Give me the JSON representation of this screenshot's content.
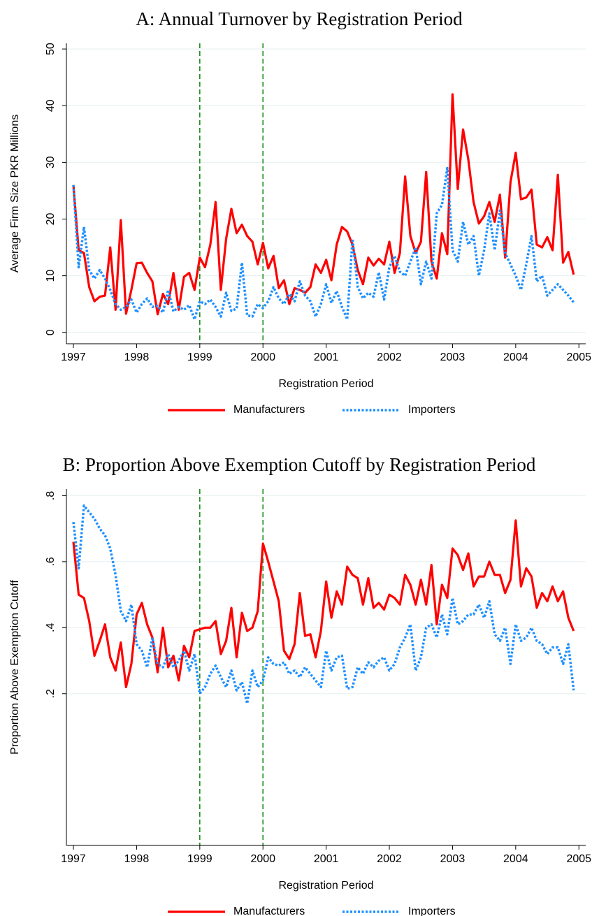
{
  "chart_data": [
    {
      "type": "line",
      "title": "A: Annual Turnover by Registration Period",
      "xlabel": "Registration Period",
      "ylabel": "Average Firm Size PKR Millions",
      "x": [
        1997,
        1997.083,
        1997.167,
        1997.25,
        1997.333,
        1997.417,
        1997.5,
        1997.583,
        1997.667,
        1997.75,
        1997.833,
        1997.917,
        1998,
        1998.083,
        1998.167,
        1998.25,
        1998.333,
        1998.417,
        1998.5,
        1998.583,
        1998.667,
        1998.75,
        1998.833,
        1998.917,
        1999,
        1999.083,
        1999.167,
        1999.25,
        1999.333,
        1999.417,
        1999.5,
        1999.583,
        1999.667,
        1999.75,
        1999.833,
        1999.917,
        2000,
        2000.083,
        2000.167,
        2000.25,
        2000.333,
        2000.417,
        2000.5,
        2000.583,
        2000.667,
        2000.75,
        2000.833,
        2000.917,
        2001,
        2001.083,
        2001.167,
        2001.25,
        2001.333,
        2001.417,
        2001.5,
        2001.583,
        2001.667,
        2001.75,
        2001.833,
        2001.917,
        2002,
        2002.083,
        2002.167,
        2002.25,
        2002.333,
        2002.417,
        2002.5,
        2002.583,
        2002.667,
        2002.75,
        2002.833,
        2002.917,
        2003,
        2003.083,
        2003.167,
        2003.25,
        2003.333,
        2003.417,
        2003.5,
        2003.583,
        2003.667,
        2003.75,
        2003.833,
        2003.917,
        2004,
        2004.083,
        2004.167,
        2004.25,
        2004.333,
        2004.417,
        2004.5,
        2004.583,
        2004.667,
        2004.75,
        2004.833,
        2004.917
      ],
      "series": [
        {
          "name": "Manufacturers",
          "color": "#ff0000",
          "style": "solid",
          "values": [
            26,
            14.5,
            14,
            8,
            5.5,
            6.3,
            6.5,
            15,
            4,
            19.8,
            3.3,
            7.5,
            12.2,
            12.3,
            10.5,
            9,
            3.2,
            6.8,
            5,
            10.5,
            4,
            9.8,
            10.5,
            7.5,
            13.2,
            11.5,
            15.5,
            23,
            7.5,
            16.5,
            21.8,
            17.5,
            19,
            17,
            16,
            12,
            15.8,
            11.3,
            13.5,
            7.8,
            9.2,
            5,
            7.8,
            7.5,
            7,
            8,
            12,
            10.5,
            12.8,
            9.2,
            15.5,
            18.6,
            17.8,
            15.5,
            11,
            8.5,
            13.2,
            11.8,
            13,
            12,
            16,
            10.5,
            14,
            27.5,
            17,
            14,
            16,
            28.3,
            12.5,
            9.5,
            17.5,
            13.8,
            42,
            25.3,
            35.8,
            30.5,
            23,
            19.2,
            20.5,
            23,
            19.5,
            24.3,
            13.2,
            26.5,
            31.7,
            23.5,
            23.8,
            25.2,
            15.5,
            15,
            16.8,
            14.5,
            27.8,
            12.3,
            14.2,
            10.2
          ]
        },
        {
          "name": "Importers",
          "color": "#1e90ff",
          "style": "dotted",
          "values": [
            26,
            11.5,
            18.6,
            11,
            9.5,
            11,
            9.5,
            7.5,
            5,
            4,
            4.5,
            5.8,
            3.5,
            5,
            6,
            4.5,
            4.7,
            3.5,
            7.5,
            3.7,
            4.5,
            4,
            4.8,
            2.3,
            5.5,
            5,
            5.8,
            4.5,
            2.8,
            7,
            3.8,
            4.2,
            12.3,
            3,
            2.8,
            5,
            4.3,
            5.5,
            8,
            6,
            5,
            6.8,
            5.5,
            9,
            6.5,
            5.5,
            2.8,
            5,
            8.5,
            5.2,
            7.3,
            4.5,
            2.3,
            16.5,
            8,
            6,
            7,
            6.3,
            10.6,
            5.8,
            11.5,
            13.5,
            10.7,
            10,
            12.5,
            15,
            8.5,
            12.5,
            9.5,
            21,
            22.5,
            29,
            14.5,
            12.5,
            19.5,
            15.5,
            17,
            10,
            14.5,
            21,
            14.5,
            21.5,
            14,
            12,
            10,
            7.5,
            12,
            17,
            9,
            10,
            6.5,
            7.5,
            8.5,
            7.5,
            6.5,
            5.3
          ]
        }
      ],
      "xlim": [
        1996.889,
        2005.108
      ],
      "xticks": [
        1997,
        1998,
        1999,
        2000,
        2001,
        2002,
        2003,
        2004,
        2005
      ],
      "ylim": [
        -2,
        51
      ],
      "yticks": [
        0,
        10,
        20,
        30,
        40,
        50
      ],
      "grid": true,
      "vlines": [
        1999,
        2000
      ],
      "vline_color": "#1a8c1a",
      "legend": "bottom"
    },
    {
      "type": "line",
      "title": "B: Proportion Above Exemption Cutoff by Registration Period",
      "xlabel": "Registration Period",
      "ylabel": "Proportion Above Exemption Cutoff",
      "x": [
        1997,
        1997.083,
        1997.167,
        1997.25,
        1997.333,
        1997.417,
        1997.5,
        1997.583,
        1997.667,
        1997.75,
        1997.833,
        1997.917,
        1998,
        1998.083,
        1998.167,
        1998.25,
        1998.333,
        1998.417,
        1998.5,
        1998.583,
        1998.667,
        1998.75,
        1998.833,
        1998.917,
        1999,
        1999.083,
        1999.167,
        1999.25,
        1999.333,
        1999.417,
        1999.5,
        1999.583,
        1999.667,
        1999.75,
        1999.833,
        1999.917,
        2000,
        2000.083,
        2000.167,
        2000.25,
        2000.333,
        2000.417,
        2000.5,
        2000.583,
        2000.667,
        2000.75,
        2000.833,
        2000.917,
        2001,
        2001.083,
        2001.167,
        2001.25,
        2001.333,
        2001.417,
        2001.5,
        2001.583,
        2001.667,
        2001.75,
        2001.833,
        2001.917,
        2002,
        2002.083,
        2002.167,
        2002.25,
        2002.333,
        2002.417,
        2002.5,
        2002.583,
        2002.667,
        2002.75,
        2002.833,
        2002.917,
        2003,
        2003.083,
        2003.167,
        2003.25,
        2003.333,
        2003.417,
        2003.5,
        2003.583,
        2003.667,
        2003.75,
        2003.833,
        2003.917,
        2004,
        2004.083,
        2004.167,
        2004.25,
        2004.333,
        2004.417,
        2004.5,
        2004.583,
        2004.667,
        2004.75,
        2004.833,
        2004.917
      ],
      "series": [
        {
          "name": "Manufacturers",
          "color": "#ff0000",
          "style": "solid",
          "values": [
            0.66,
            0.5,
            0.49,
            0.42,
            0.315,
            0.36,
            0.41,
            0.31,
            0.27,
            0.355,
            0.22,
            0.29,
            0.44,
            0.475,
            0.41,
            0.37,
            0.265,
            0.4,
            0.28,
            0.315,
            0.24,
            0.345,
            0.31,
            0.39,
            0.395,
            0.4,
            0.4,
            0.42,
            0.32,
            0.36,
            0.46,
            0.31,
            0.445,
            0.39,
            0.4,
            0.45,
            0.655,
            0.6,
            0.54,
            0.48,
            0.33,
            0.305,
            0.35,
            0.505,
            0.375,
            0.38,
            0.31,
            0.39,
            0.54,
            0.43,
            0.51,
            0.47,
            0.585,
            0.56,
            0.55,
            0.47,
            0.55,
            0.46,
            0.475,
            0.455,
            0.5,
            0.49,
            0.47,
            0.56,
            0.53,
            0.47,
            0.545,
            0.47,
            0.59,
            0.41,
            0.53,
            0.49,
            0.64,
            0.62,
            0.575,
            0.625,
            0.525,
            0.555,
            0.555,
            0.6,
            0.56,
            0.56,
            0.505,
            0.545,
            0.725,
            0.525,
            0.58,
            0.555,
            0.46,
            0.505,
            0.48,
            0.525,
            0.48,
            0.51,
            0.43,
            0.39
          ]
        },
        {
          "name": "Importers",
          "color": "#1e90ff",
          "style": "dotted",
          "values": [
            0.72,
            0.58,
            0.77,
            0.75,
            0.73,
            0.7,
            0.68,
            0.64,
            0.56,
            0.45,
            0.42,
            0.47,
            0.35,
            0.33,
            0.28,
            0.37,
            0.29,
            0.28,
            0.32,
            0.28,
            0.3,
            0.33,
            0.27,
            0.32,
            0.2,
            0.22,
            0.26,
            0.285,
            0.25,
            0.22,
            0.27,
            0.21,
            0.235,
            0.17,
            0.27,
            0.22,
            0.24,
            0.31,
            0.29,
            0.285,
            0.295,
            0.26,
            0.27,
            0.25,
            0.28,
            0.26,
            0.24,
            0.22,
            0.33,
            0.27,
            0.31,
            0.315,
            0.215,
            0.22,
            0.28,
            0.26,
            0.295,
            0.28,
            0.3,
            0.31,
            0.27,
            0.29,
            0.34,
            0.37,
            0.41,
            0.27,
            0.31,
            0.4,
            0.41,
            0.37,
            0.44,
            0.38,
            0.49,
            0.41,
            0.42,
            0.44,
            0.44,
            0.47,
            0.43,
            0.48,
            0.38,
            0.36,
            0.4,
            0.29,
            0.41,
            0.36,
            0.37,
            0.4,
            0.36,
            0.35,
            0.32,
            0.34,
            0.34,
            0.29,
            0.35,
            0.21
          ]
        }
      ],
      "xlim": [
        1996.889,
        2005.108
      ],
      "xticks": [
        1997,
        1998,
        1999,
        2000,
        2001,
        2002,
        2003,
        2004,
        2005
      ],
      "ylim": [
        -0.26,
        0.82
      ],
      "yticks": [
        {
          "value": 0.2,
          "label": ".2"
        },
        {
          "value": 0.4,
          "label": ".4"
        },
        {
          "value": 0.6,
          "label": ".6"
        },
        {
          "value": 0.8,
          "label": ".8"
        }
      ],
      "grid": true,
      "vlines": [
        1999,
        2000
      ],
      "vline_color": "#1a8c1a",
      "legend": "bottom"
    }
  ]
}
